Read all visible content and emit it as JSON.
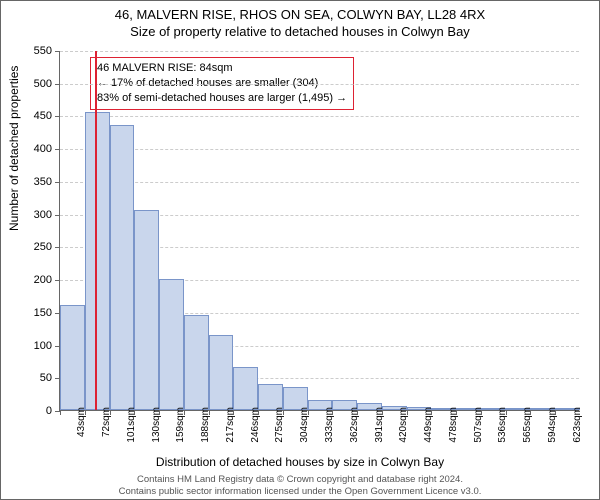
{
  "title_main": "46, MALVERN RISE, RHOS ON SEA, COLWYN BAY, LL28 4RX",
  "title_sub": "Size of property relative to detached houses in Colwyn Bay",
  "ylabel": "Number of detached properties",
  "xlabel": "Distribution of detached houses by size in Colwyn Bay",
  "footer_line1": "Contains HM Land Registry data © Crown copyright and database right 2024.",
  "footer_line2": "Contains public sector information licensed under the Open Government Licence v3.0.",
  "info_box": {
    "line1": "46 MALVERN RISE: 84sqm",
    "line2": "← 17% of detached houses are smaller (304)",
    "line3": "83% of semi-detached houses are larger (1,495) →"
  },
  "chart": {
    "type": "histogram",
    "ylim": [
      0,
      550
    ],
    "ytick_step": 50,
    "background_color": "#ffffff",
    "grid_color": "#cccccc",
    "bar_fill": "#c9d6ec",
    "bar_border": "#7a95c9",
    "marker_color": "#dd2233",
    "marker_sqm": 84,
    "x_start": 43,
    "x_step": 29,
    "x_unit": "sqm",
    "x_count": 21,
    "values": [
      160,
      455,
      435,
      305,
      200,
      145,
      115,
      65,
      40,
      35,
      15,
      15,
      10,
      6,
      5,
      3,
      3,
      2,
      2,
      2,
      1
    ]
  }
}
